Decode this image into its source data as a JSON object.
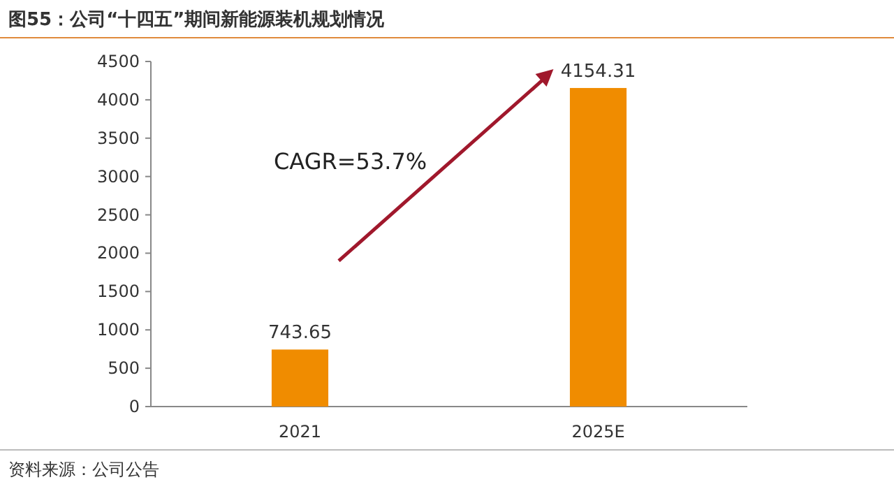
{
  "chart_data": {
    "type": "bar",
    "title": "图55：公司“十四五”期间新能源装机规划情况",
    "categories": [
      "2021",
      "2025E"
    ],
    "values": [
      743.65,
      4154.31
    ],
    "color": "#f08c00",
    "ylim": [
      0,
      4500
    ],
    "yticks": [
      0,
      500,
      1000,
      1500,
      2000,
      2500,
      3000,
      3500,
      4000,
      4500
    ],
    "data_labels": true,
    "annotations": [
      "CAGR=53.7%",
      "资料来源：公司公告"
    ]
  }
}
